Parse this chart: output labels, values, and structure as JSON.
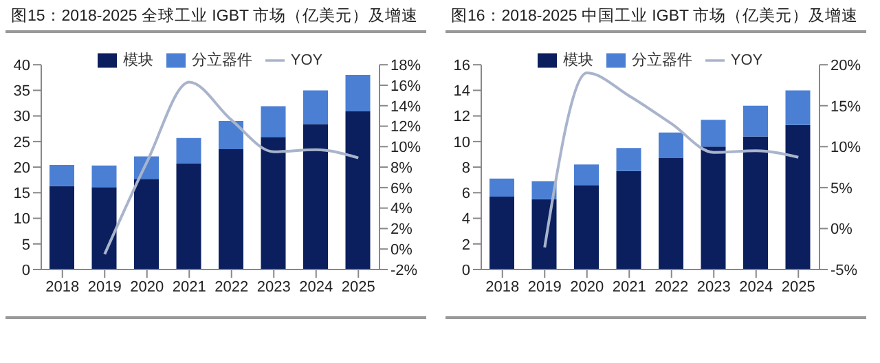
{
  "chart_data": [
    {
      "type": "bar",
      "title": "图15：2018-2025 全球工业 IGBT 市场（亿美元）及增速",
      "categories": [
        "2018",
        "2019",
        "2020",
        "2021",
        "2022",
        "2023",
        "2024",
        "2025"
      ],
      "stacked": true,
      "series": [
        {
          "name": "模块",
          "color": "#0b1f5e",
          "values": [
            16.3,
            16.1,
            17.7,
            20.7,
            23.5,
            25.9,
            28.4,
            30.9
          ]
        },
        {
          "name": "分立器件",
          "color": "#4a7fd4",
          "values": [
            4.1,
            4.2,
            4.4,
            5.0,
            5.5,
            6.0,
            6.6,
            7.1
          ]
        },
        {
          "name": "YOY",
          "type": "line",
          "axis": "y2",
          "color": "#a9b4cc",
          "values": [
            null,
            -0.5,
            8.5,
            16.3,
            12.6,
            9.5,
            9.7,
            8.9
          ]
        }
      ],
      "ylim": [
        0,
        40
      ],
      "yticks": [
        0,
        5,
        10,
        15,
        20,
        25,
        30,
        35,
        40
      ],
      "y2lim": [
        -2,
        18
      ],
      "y2ticks": [
        {
          "value": -2,
          "label": "-2%"
        },
        {
          "value": 0,
          "label": "0%"
        },
        {
          "value": 2,
          "label": "2%"
        },
        {
          "value": 4,
          "label": "4%"
        },
        {
          "value": 6,
          "label": "6%"
        },
        {
          "value": 8,
          "label": "8%"
        },
        {
          "value": 10,
          "label": "10%"
        },
        {
          "value": 12,
          "label": "12%"
        },
        {
          "value": 14,
          "label": "14%"
        },
        {
          "value": 16,
          "label": "16%"
        },
        {
          "value": 18,
          "label": "18%"
        }
      ],
      "legend": "top",
      "marker": "none"
    },
    {
      "type": "bar",
      "title": "图16：2018-2025 中国工业 IGBT 市场（亿美元）及增速",
      "categories": [
        "2018",
        "2019",
        "2020",
        "2021",
        "2022",
        "2023",
        "2024",
        "2025"
      ],
      "stacked": true,
      "series": [
        {
          "name": "模块",
          "color": "#0b1f5e",
          "values": [
            5.7,
            5.5,
            6.6,
            7.7,
            8.7,
            9.6,
            10.4,
            11.3
          ]
        },
        {
          "name": "分立器件",
          "color": "#4a7fd4",
          "values": [
            1.4,
            1.4,
            1.6,
            1.8,
            2.0,
            2.1,
            2.4,
            2.7
          ]
        },
        {
          "name": "YOY",
          "type": "line",
          "axis": "y2",
          "color": "#a9b4cc",
          "values": [
            null,
            -2.3,
            19.0,
            16.2,
            12.8,
            9.3,
            9.5,
            8.7
          ]
        }
      ],
      "ylim": [
        0,
        16
      ],
      "yticks": [
        0,
        2,
        4,
        6,
        8,
        10,
        12,
        14,
        16
      ],
      "y2lim": [
        -5,
        20
      ],
      "y2ticks": [
        {
          "value": -5,
          "label": "-5%"
        },
        {
          "value": 0,
          "label": "0%"
        },
        {
          "value": 5,
          "label": "5%"
        },
        {
          "value": 10,
          "label": "10%"
        },
        {
          "value": 15,
          "label": "15%"
        },
        {
          "value": 20,
          "label": "20%"
        }
      ],
      "legend": "top",
      "marker": "none"
    }
  ]
}
